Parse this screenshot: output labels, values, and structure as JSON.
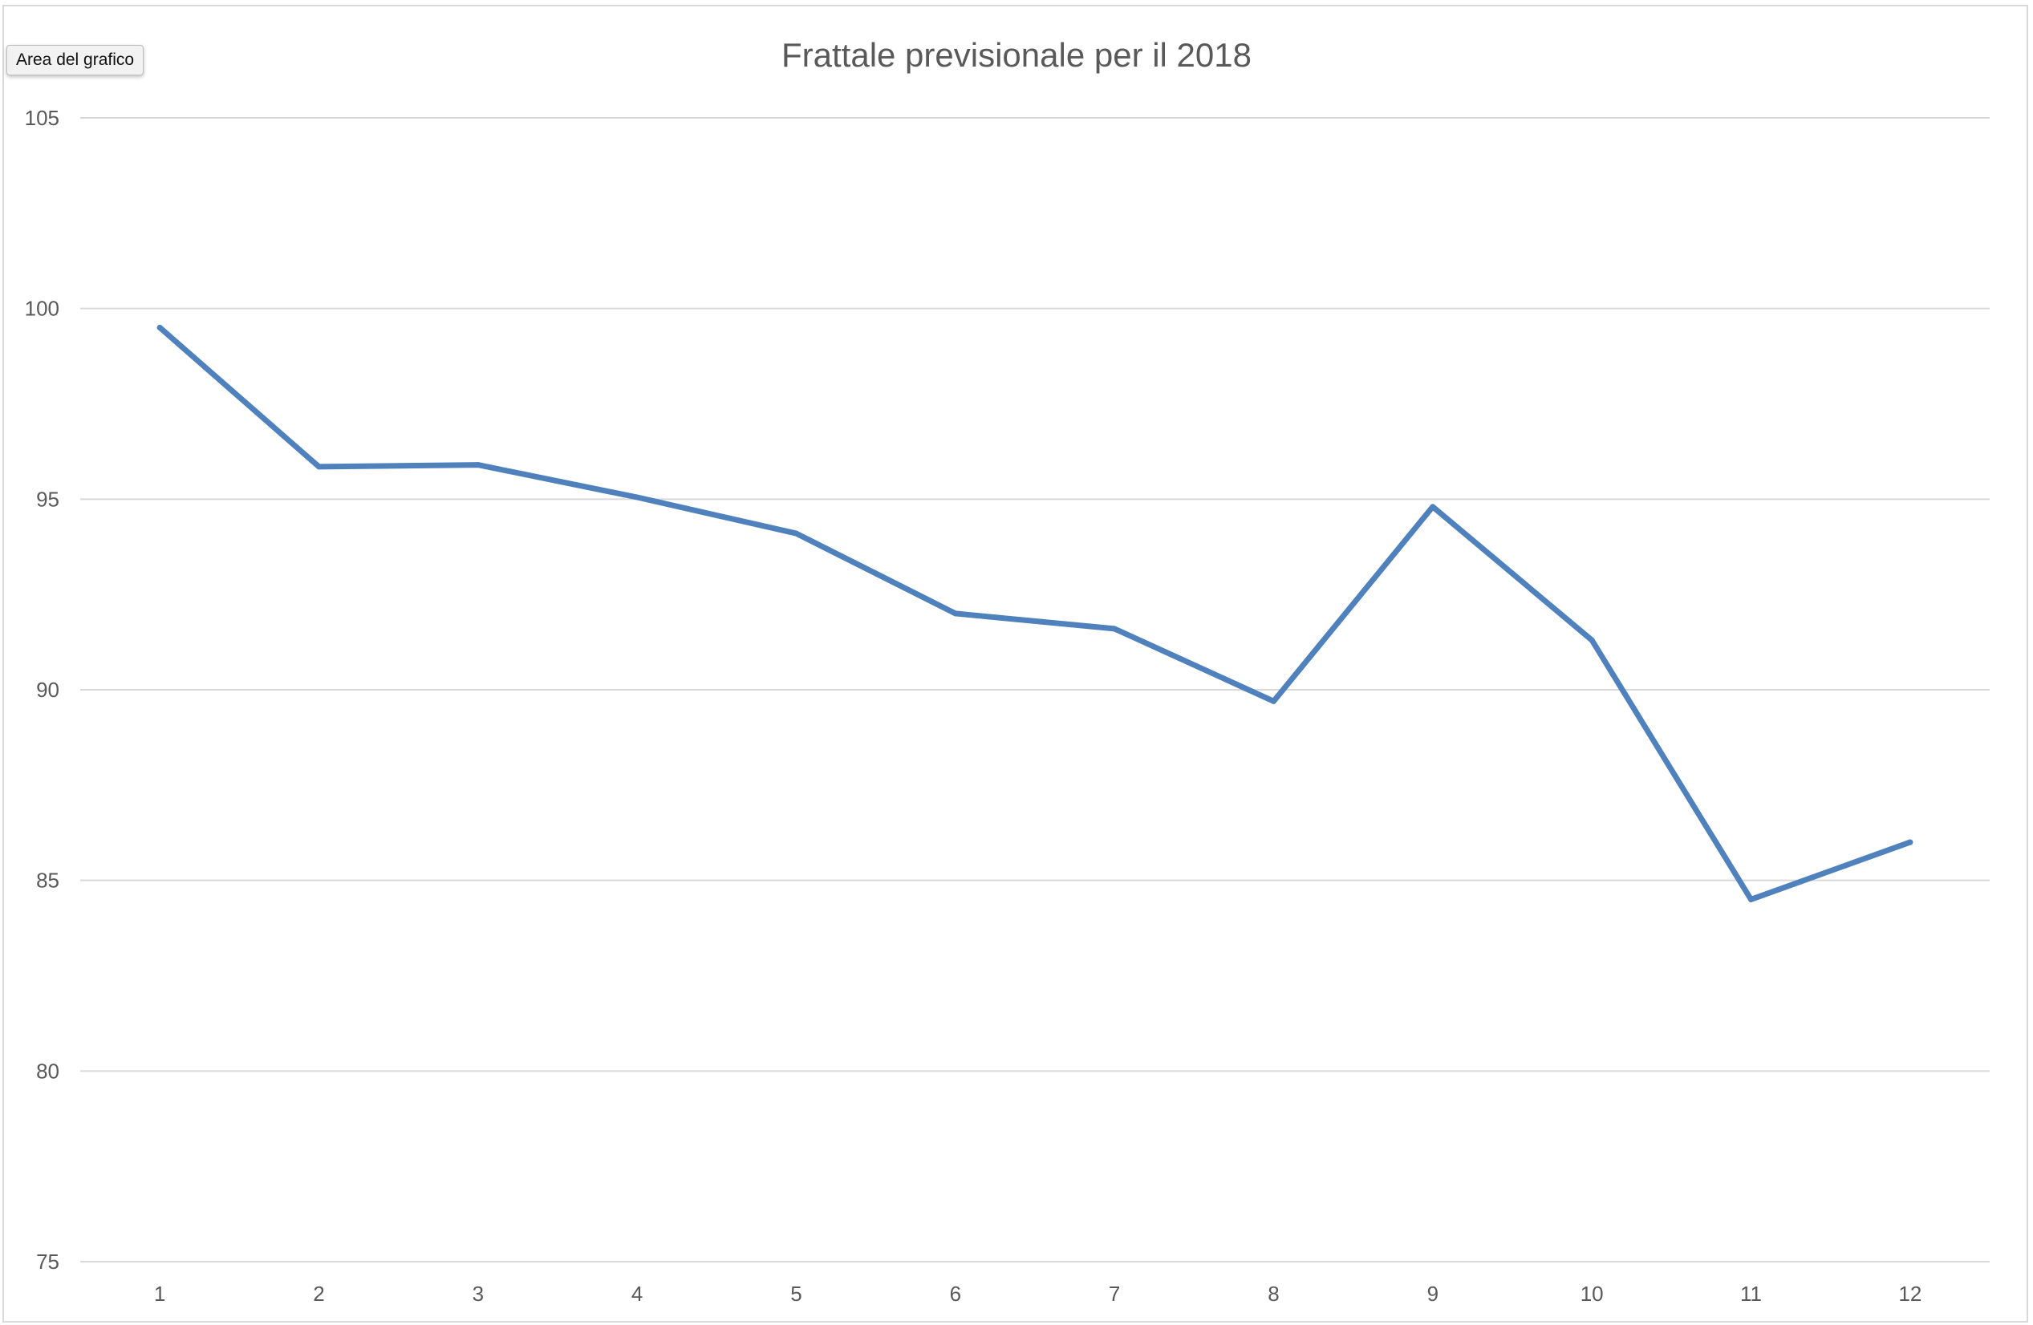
{
  "tooltip": {
    "label": "Area del grafico"
  },
  "chart_data": {
    "type": "line",
    "title": "Frattale previsionale per il 2018",
    "xlabel": "",
    "ylabel": "",
    "categories": [
      "1",
      "2",
      "3",
      "4",
      "5",
      "6",
      "7",
      "8",
      "9",
      "10",
      "11",
      "12"
    ],
    "series": [
      {
        "values": [
          99.5,
          95.85,
          95.9,
          95.05,
          94.1,
          92.0,
          91.6,
          89.7,
          94.8,
          91.3,
          84.5,
          86.0
        ],
        "color": "#4f81bd"
      }
    ],
    "ylim": [
      75,
      105
    ],
    "yticks": [
      "75",
      "80",
      "85",
      "90",
      "95",
      "100",
      "105"
    ],
    "grid": true,
    "legend": "none"
  }
}
